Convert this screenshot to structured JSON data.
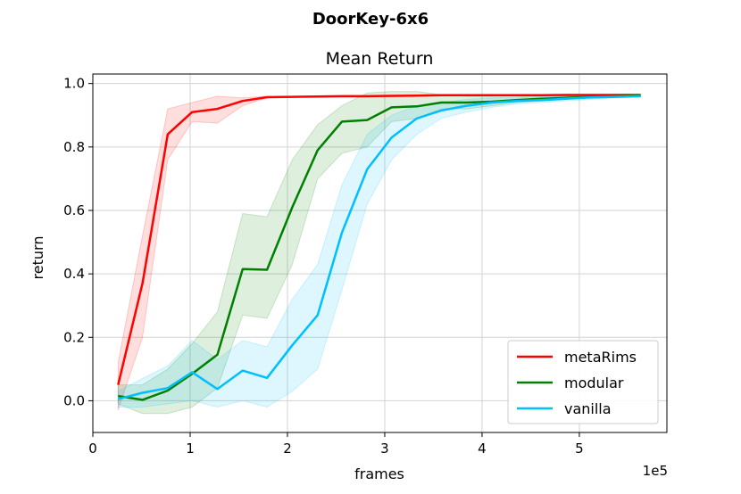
{
  "suptitle": "DoorKey-6x6",
  "chart_data": {
    "type": "line",
    "title": "Mean Return",
    "xlabel": "frames",
    "ylabel": "return",
    "x_offset_label": "1e5",
    "xlim": [
      0,
      5.9
    ],
    "ylim": [
      -0.1,
      1.03
    ],
    "xticks": [
      0,
      1,
      2,
      3,
      4,
      5
    ],
    "xtick_labels": [
      "0",
      "1",
      "2",
      "3",
      "4",
      "5"
    ],
    "yticks": [
      0.0,
      0.2,
      0.4,
      0.6,
      0.8,
      1.0
    ],
    "ytick_labels": [
      "0.0",
      "0.2",
      "0.4",
      "0.6",
      "0.8",
      "1.0"
    ],
    "grid": true,
    "legend_position": "lower-right",
    "x": [
      0.26,
      0.51,
      0.77,
      1.02,
      1.28,
      1.54,
      1.79,
      2.05,
      2.31,
      2.56,
      2.82,
      3.07,
      3.33,
      3.58,
      3.84,
      4.1,
      4.35,
      4.61,
      4.86,
      5.12,
      5.38,
      5.63
    ],
    "series": [
      {
        "name": "metaRims",
        "color": "#ff0000",
        "values": [
          0.05,
          0.37,
          0.84,
          0.91,
          0.92,
          0.945,
          0.957,
          0.958,
          0.959,
          0.96,
          0.96,
          0.961,
          0.962,
          0.963,
          0.963,
          0.963,
          0.963,
          0.963,
          0.964,
          0.964,
          0.964,
          0.964
        ],
        "lower": [
          -0.03,
          0.2,
          0.76,
          0.88,
          0.875,
          0.93,
          0.955,
          0.956,
          0.957,
          0.958,
          0.958,
          0.959,
          0.96,
          0.961,
          0.961,
          0.961,
          0.961,
          0.961,
          0.962,
          0.962,
          0.962,
          0.962
        ],
        "upper": [
          0.12,
          0.52,
          0.92,
          0.94,
          0.96,
          0.955,
          0.96,
          0.96,
          0.961,
          0.962,
          0.962,
          0.963,
          0.964,
          0.965,
          0.965,
          0.965,
          0.965,
          0.965,
          0.966,
          0.966,
          0.966,
          0.966
        ]
      },
      {
        "name": "modular",
        "color": "#008000",
        "values": [
          0.015,
          0.003,
          0.032,
          0.085,
          0.145,
          0.415,
          0.413,
          0.61,
          0.79,
          0.88,
          0.885,
          0.925,
          0.928,
          0.94,
          0.94,
          0.943,
          0.948,
          0.952,
          0.955,
          0.958,
          0.96,
          0.962
        ],
        "lower": [
          -0.01,
          -0.04,
          -0.04,
          -0.02,
          0.04,
          0.27,
          0.26,
          0.43,
          0.7,
          0.78,
          0.8,
          0.88,
          0.89,
          0.92,
          0.92,
          0.93,
          0.94,
          0.945,
          0.95,
          0.955,
          0.957,
          0.96
        ],
        "upper": [
          0.05,
          0.05,
          0.1,
          0.18,
          0.28,
          0.59,
          0.58,
          0.76,
          0.87,
          0.93,
          0.97,
          0.975,
          0.975,
          0.965,
          0.96,
          0.958,
          0.958,
          0.96,
          0.96,
          0.962,
          0.963,
          0.965
        ]
      },
      {
        "name": "vanilla",
        "color": "#00bfff",
        "values": [
          0.005,
          0.025,
          0.04,
          0.09,
          0.037,
          0.095,
          0.072,
          0.175,
          0.27,
          0.53,
          0.73,
          0.83,
          0.89,
          0.915,
          0.93,
          0.94,
          0.945,
          0.948,
          0.952,
          0.956,
          0.958,
          0.96
        ],
        "lower": [
          -0.02,
          -0.02,
          -0.01,
          0.0,
          -0.02,
          0.0,
          -0.02,
          0.03,
          0.1,
          0.35,
          0.62,
          0.76,
          0.84,
          0.89,
          0.91,
          0.925,
          0.935,
          0.94,
          0.945,
          0.95,
          0.955,
          0.958
        ],
        "upper": [
          0.03,
          0.07,
          0.11,
          0.19,
          0.13,
          0.19,
          0.17,
          0.32,
          0.43,
          0.68,
          0.84,
          0.9,
          0.93,
          0.94,
          0.95,
          0.955,
          0.955,
          0.958,
          0.96,
          0.962,
          0.962,
          0.963
        ]
      }
    ]
  }
}
